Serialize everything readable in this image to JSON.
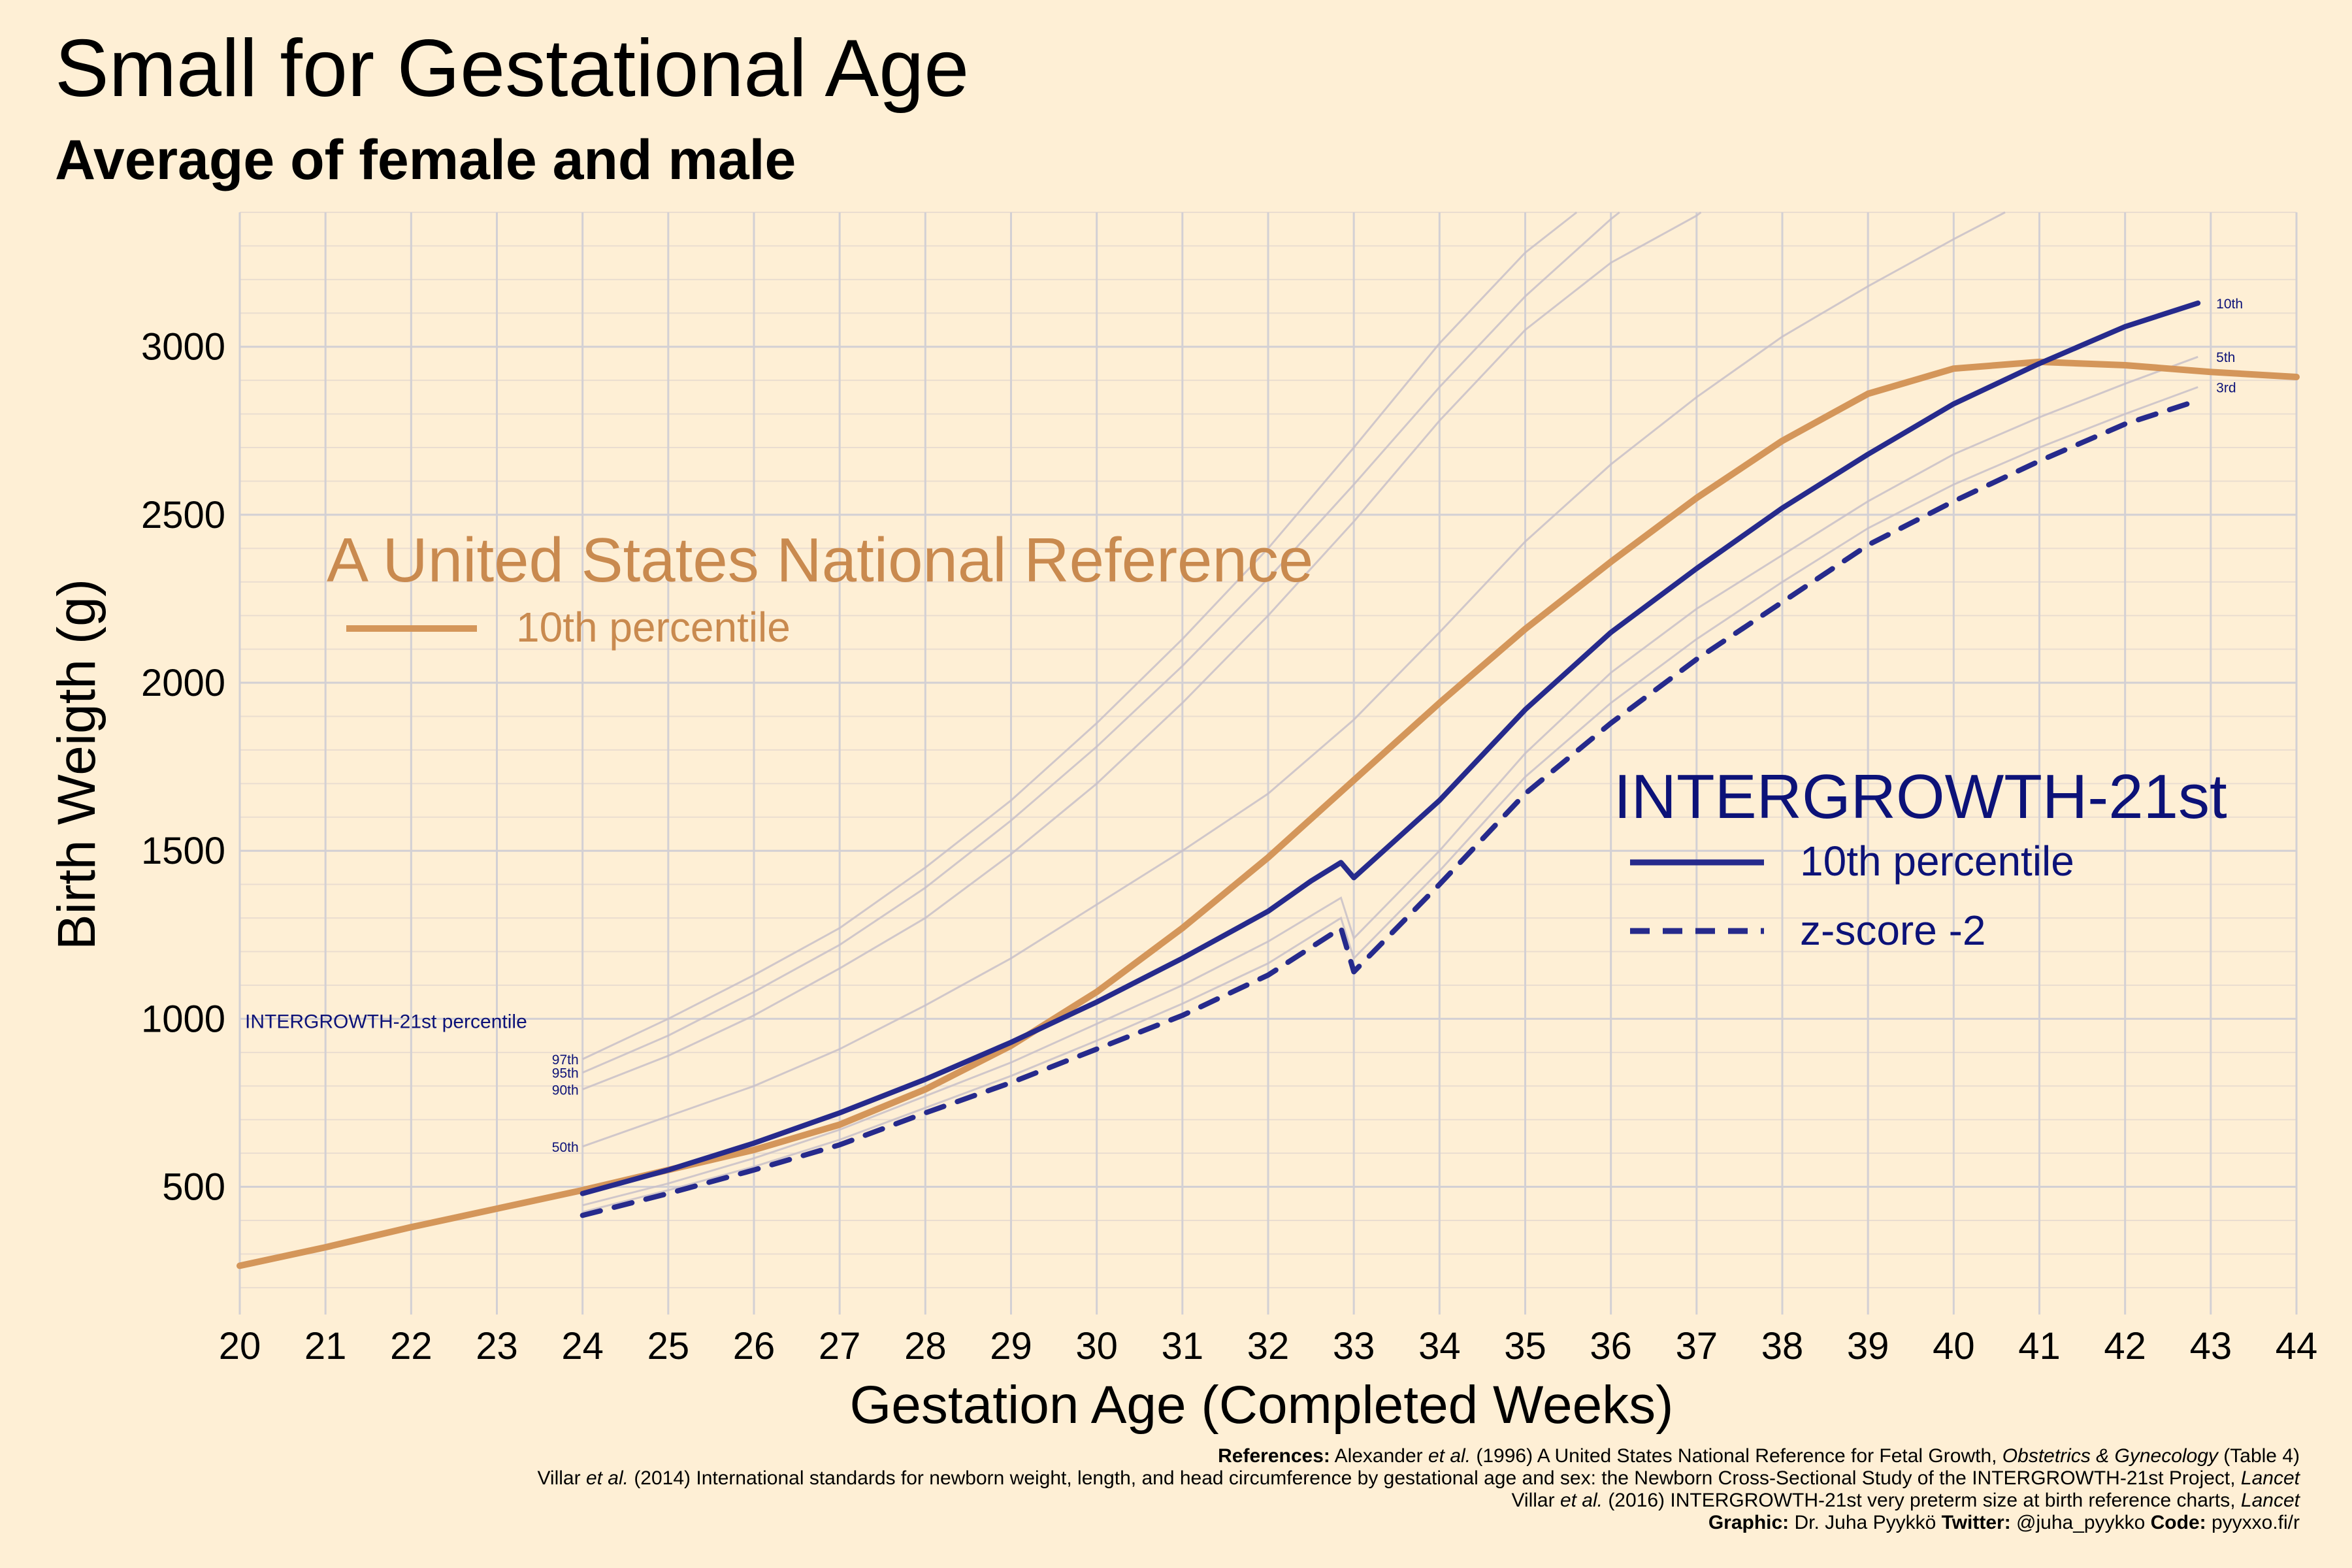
{
  "header": {
    "title": "Small for Gestational Age",
    "subtitle": "Average of female and male"
  },
  "colors": {
    "background": "#FEEFD5",
    "us_reference": "#D4965A",
    "us_reference_text": "#C98A4F",
    "intergrowth": "#262A8C",
    "intergrowth_text": "#0C1278",
    "grid_major": "#D3D0D4",
    "grid_minor": "#EADDD0",
    "percentile_lines": "#C8C0C8"
  },
  "legends": {
    "us": {
      "title": "A United States National Reference",
      "item": "10th percentile"
    },
    "intergrowth": {
      "title": "INTERGROWTH-21st",
      "items": [
        "10th percentile",
        "z-score -2"
      ]
    },
    "percentile_heading": "INTERGROWTH-21st percentile"
  },
  "chart_data": {
    "type": "line",
    "xlabel": "Gestation Age (Completed Weeks)",
    "ylabel": "Birth Weigth (g)",
    "xlim": [
      20,
      44
    ],
    "ylim": [
      120,
      3400
    ],
    "x_ticks": [
      20,
      21,
      22,
      23,
      24,
      25,
      26,
      27,
      28,
      29,
      30,
      31,
      32,
      33,
      34,
      35,
      36,
      37,
      38,
      39,
      40,
      41,
      42,
      43,
      44
    ],
    "y_ticks": [
      500,
      1000,
      1500,
      2000,
      2500,
      3000
    ],
    "grid": true,
    "legend_position": "inside",
    "series": [
      {
        "name": "A United States National Reference 10th percentile",
        "style": "solid",
        "color": "#D4965A",
        "x": [
          20,
          21,
          22,
          23,
          24,
          25,
          26,
          27,
          28,
          29,
          30,
          31,
          32,
          33,
          34,
          35,
          36,
          37,
          38,
          39,
          40,
          41,
          42,
          43,
          44
        ],
        "y": [
          265,
          320,
          380,
          435,
          490,
          550,
          610,
          685,
          790,
          920,
          1080,
          1270,
          1480,
          1710,
          1940,
          2160,
          2360,
          2550,
          2720,
          2860,
          2935,
          2955,
          2945,
          2925,
          2910
        ]
      },
      {
        "name": "INTERGROWTH-21st 10th percentile",
        "style": "solid",
        "color": "#262A8C",
        "x": [
          24,
          25,
          26,
          27,
          28,
          29,
          30,
          31,
          32,
          32.5,
          32.85,
          33,
          34,
          35,
          36,
          37,
          38,
          39,
          40,
          41,
          42,
          42.85
        ],
        "y": [
          480,
          550,
          630,
          720,
          820,
          930,
          1050,
          1180,
          1320,
          1410,
          1465,
          1420,
          1650,
          1920,
          2150,
          2340,
          2520,
          2680,
          2830,
          2950,
          3060,
          3130
        ]
      },
      {
        "name": "INTERGROWTH-21st z-score -2",
        "style": "dashed",
        "color": "#262A8C",
        "x": [
          24,
          25,
          26,
          27,
          28,
          29,
          30,
          31,
          32,
          32.85,
          33,
          34,
          35,
          36,
          37,
          38,
          39,
          40,
          41,
          42,
          42.85
        ],
        "y": [
          415,
          480,
          550,
          625,
          720,
          810,
          910,
          1010,
          1130,
          1270,
          1140,
          1400,
          1670,
          1880,
          2070,
          2240,
          2410,
          2540,
          2660,
          2770,
          2840
        ]
      },
      {
        "name": "97th",
        "style": "thin",
        "x": [
          24,
          25,
          26,
          27,
          28,
          29,
          30,
          31,
          32,
          33,
          34,
          35,
          35.6
        ],
        "y": [
          880,
          1000,
          1130,
          1270,
          1450,
          1650,
          1880,
          2130,
          2400,
          2700,
          3010,
          3280,
          3400
        ]
      },
      {
        "name": "95th",
        "style": "thin",
        "x": [
          24,
          25,
          26,
          27,
          28,
          29,
          30,
          31,
          32,
          33,
          34,
          35,
          36,
          36.1
        ],
        "y": [
          840,
          950,
          1080,
          1220,
          1390,
          1590,
          1810,
          2050,
          2310,
          2590,
          2880,
          3150,
          3380,
          3400
        ]
      },
      {
        "name": "90th",
        "style": "thin",
        "x": [
          24,
          25,
          26,
          27,
          28,
          29,
          30,
          31,
          32,
          33,
          34,
          35,
          36,
          37,
          37.05
        ],
        "y": [
          790,
          890,
          1010,
          1150,
          1300,
          1490,
          1700,
          1940,
          2200,
          2480,
          2780,
          3050,
          3250,
          3390,
          3400
        ]
      },
      {
        "name": "50th",
        "style": "thin",
        "x": [
          24,
          25,
          26,
          27,
          28,
          29,
          30,
          31,
          32,
          33,
          34,
          35,
          36,
          37,
          38,
          39,
          40,
          40.6
        ],
        "y": [
          620,
          710,
          800,
          910,
          1040,
          1180,
          1340,
          1500,
          1670,
          1890,
          2150,
          2420,
          2650,
          2850,
          3030,
          3180,
          3320,
          3400
        ]
      },
      {
        "name": "5th",
        "style": "thin",
        "x": [
          24,
          25,
          26,
          27,
          28,
          29,
          30,
          31,
          32,
          32.85,
          33,
          34,
          35,
          36,
          37,
          38,
          39,
          40,
          41,
          42,
          42.85
        ],
        "y": [
          445,
          510,
          585,
          670,
          770,
          870,
          985,
          1100,
          1230,
          1360,
          1240,
          1500,
          1790,
          2030,
          2220,
          2380,
          2540,
          2680,
          2790,
          2890,
          2970
        ]
      },
      {
        "name": "3rd",
        "style": "thin",
        "x": [
          24,
          25,
          26,
          27,
          28,
          29,
          30,
          31,
          32,
          32.85,
          33,
          34,
          35,
          36,
          37,
          38,
          39,
          40,
          41,
          42,
          42.85
        ],
        "y": [
          425,
          490,
          560,
          640,
          735,
          830,
          935,
          1045,
          1165,
          1300,
          1180,
          1440,
          1720,
          1940,
          2130,
          2300,
          2460,
          2590,
          2700,
          2800,
          2880
        ]
      }
    ],
    "percentile_labels_left": [
      "97th",
      "95th",
      "90th",
      "50th"
    ],
    "percentile_labels_right": [
      "10th",
      "5th",
      "3rd"
    ]
  },
  "references": {
    "line1": [
      "References:",
      " Alexander ",
      "et al.",
      " (1996) A United States National Reference for Fetal Growth, ",
      "Obstetrics & Gynecology",
      " (Table 4)"
    ],
    "line2": [
      "Villar ",
      "et al.",
      " (2014) International standards for newborn weight, length, and head circumference by gestational age and sex: the Newborn Cross-Sectional Study of the INTERGROWTH-21st Project, ",
      "Lancet"
    ],
    "line3": [
      "Villar ",
      "et al.",
      " (2016) INTERGROWTH-21st very preterm size at birth reference charts, ",
      "Lancet"
    ],
    "line4": [
      "Graphic:",
      " Dr. Juha Pyykkö ",
      "Twitter:",
      " @juha_pyykko ",
      "Code:",
      " pyyxxo.fi/r"
    ]
  }
}
